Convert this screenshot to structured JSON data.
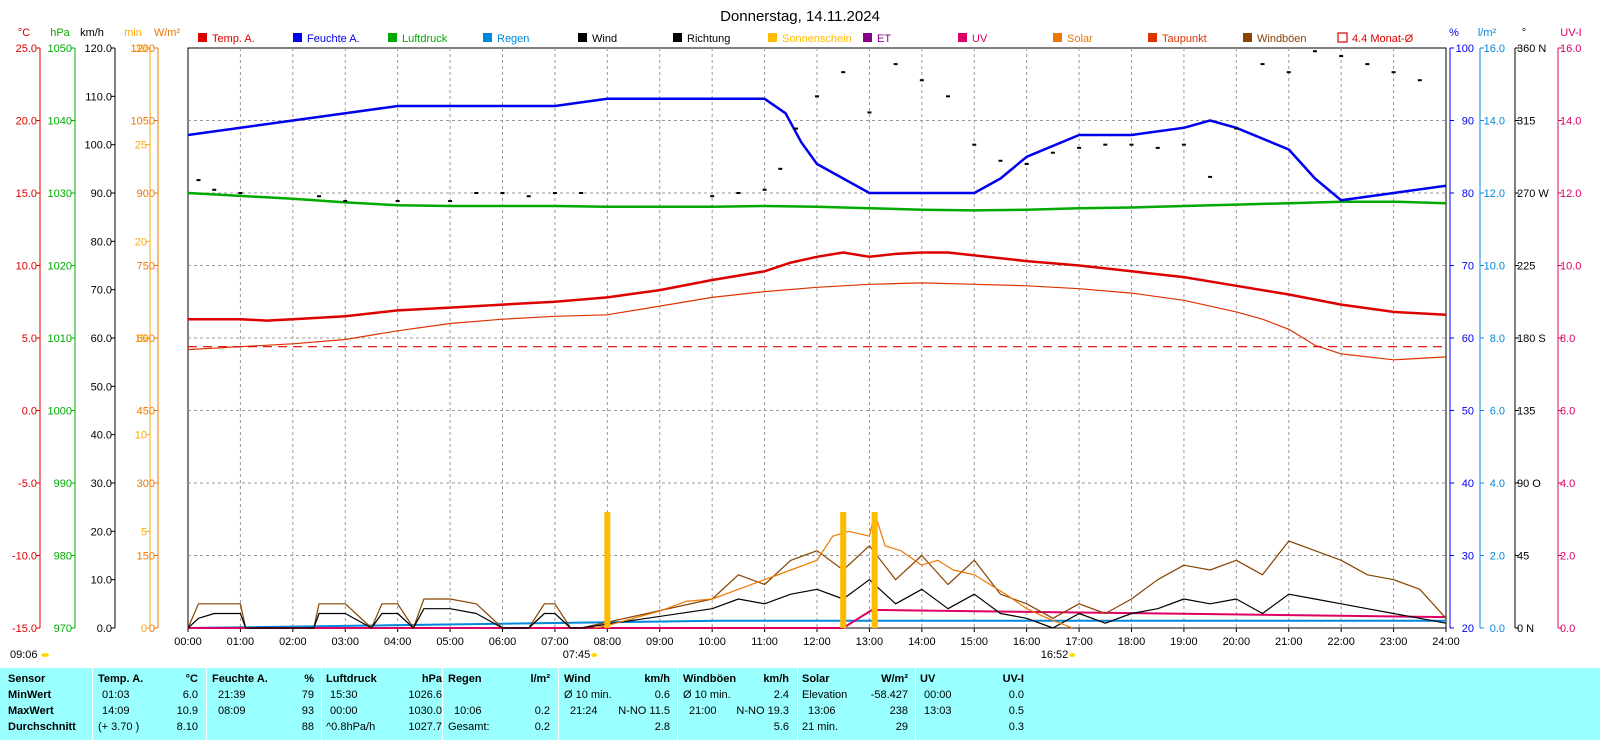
{
  "title": "Donnerstag, 14.11.2024",
  "legend": [
    {
      "label": "Temp. A.",
      "color": "#dd0000"
    },
    {
      "label": "Feuchte A.",
      "color": "#0000ee"
    },
    {
      "label": "Luftdruck",
      "color": "#00aa00"
    },
    {
      "label": "Regen",
      "color": "#0088dd"
    },
    {
      "label": "Wind",
      "color": "#000000"
    },
    {
      "label": "Richtung",
      "color": "#000000"
    },
    {
      "label": "Sonnenschein",
      "color": "#ffbb00"
    },
    {
      "label": "ET",
      "color": "#880088"
    },
    {
      "label": "UV",
      "color": "#dd0066"
    },
    {
      "label": "Solar",
      "color": "#ee7700"
    },
    {
      "label": "Taupunkt",
      "color": "#dd3300"
    },
    {
      "label": "Windböen",
      "color": "#884400"
    },
    {
      "label": "4.4 Monat-Ø",
      "color": "#dd0000"
    }
  ],
  "axes": {
    "temp": {
      "unit": "°C",
      "ticks": [
        "25.0",
        "20.0",
        "15.0",
        "10.0",
        "5.0",
        "0.0",
        "-5.0",
        "-10.0",
        "-15.0"
      ],
      "color": "#dd0000"
    },
    "pressure": {
      "unit": "hPa",
      "ticks": [
        "1050",
        "1040",
        "1030",
        "1020",
        "1010",
        "1000",
        "990",
        "980",
        "970"
      ],
      "color": "#00aa00"
    },
    "wind": {
      "unit": "km/h",
      "ticks": [
        "120.0",
        "110.0",
        "100.0",
        "90.0",
        "80.0",
        "70.0",
        "60.0",
        "50.0",
        "40.0",
        "30.0",
        "20.0",
        "10.0",
        "0.0"
      ],
      "color": "#000000"
    },
    "minutes": {
      "unit": "min",
      "ticks": [
        "30",
        "25",
        "20",
        "15",
        "10",
        "5",
        "0"
      ],
      "color": "#ffaa00"
    },
    "solar": {
      "unit": "W/m²",
      "ticks": [
        "1200",
        "1050",
        "900",
        "750",
        "600",
        "450",
        "300",
        "150",
        "0"
      ],
      "color": "#ee7700"
    },
    "humidity": {
      "unit": "%",
      "ticks": [
        "100",
        "90",
        "80",
        "70",
        "60",
        "50",
        "40",
        "30",
        "20"
      ],
      "color": "#0000ee"
    },
    "rain": {
      "unit": "l/m²",
      "ticks": [
        "16.0",
        "14.0",
        "12.0",
        "10.0",
        "8.0",
        "6.0",
        "4.0",
        "2.0",
        "0.0"
      ],
      "color": "#0088dd"
    },
    "direction": {
      "unit": "°",
      "ticks": [
        "360 N",
        "315",
        "270 W",
        "225",
        "180 S",
        "135",
        "90 O",
        "45",
        "0 N"
      ],
      "color": "#000000"
    },
    "uv": {
      "unit": "UV-I",
      "ticks": [
        "16.0",
        "14.0",
        "12.0",
        "10.0",
        "8.0",
        "6.0",
        "4.0",
        "2.0",
        "0.0"
      ],
      "color": "#dd0066"
    }
  },
  "x_ticks": [
    "00:00",
    "01:00",
    "02:00",
    "03:00",
    "04:00",
    "05:00",
    "06:00",
    "07:00",
    "08:00",
    "09:00",
    "10:00",
    "11:00",
    "12:00",
    "13:00",
    "14:00",
    "15:00",
    "16:00",
    "17:00",
    "18:00",
    "19:00",
    "20:00",
    "21:00",
    "22:00",
    "23:00",
    "24:00"
  ],
  "sun_markers": {
    "daylength": "09:06",
    "sunrise": "07:45",
    "sunset": "16:52"
  },
  "chart_data": {
    "type": "line",
    "x_unit": "hour",
    "xlim": [
      0,
      24
    ],
    "series": [
      {
        "name": "Temp. A.",
        "axis": "temp",
        "color": "#dd0000",
        "x": [
          0,
          1.0,
          1.5,
          2,
          3,
          4,
          5,
          6,
          7,
          8,
          9,
          10,
          11,
          11.5,
          12,
          12.5,
          13,
          13.5,
          14,
          14.5,
          15,
          16,
          17,
          18,
          19,
          20,
          21,
          22,
          23,
          24
        ],
        "y": [
          6.3,
          6.3,
          6.2,
          6.3,
          6.5,
          6.9,
          7.1,
          7.3,
          7.5,
          7.8,
          8.3,
          9.0,
          9.6,
          10.2,
          10.6,
          10.9,
          10.6,
          10.8,
          10.9,
          10.9,
          10.7,
          10.3,
          10.0,
          9.6,
          9.2,
          8.6,
          8.0,
          7.3,
          6.8,
          6.6
        ]
      },
      {
        "name": "Feuchte A.",
        "axis": "humidity",
        "color": "#0000ee",
        "x": [
          0,
          1,
          2,
          3,
          4,
          5,
          6,
          7,
          8,
          9,
          10,
          11,
          11.4,
          11.7,
          12,
          12.5,
          13,
          14,
          15,
          15.5,
          16,
          17,
          18,
          19,
          19.5,
          20,
          21,
          21.5,
          22,
          23,
          24
        ],
        "y": [
          88,
          89,
          90,
          91,
          92,
          92,
          92,
          92,
          93,
          93,
          93,
          93,
          91,
          87,
          84,
          82,
          80,
          80,
          80,
          82,
          85,
          88,
          88,
          89,
          90,
          89,
          86,
          82,
          79,
          80,
          81
        ]
      },
      {
        "name": "Luftdruck",
        "axis": "pressure",
        "color": "#00aa00",
        "x": [
          0,
          1,
          2,
          3,
          4,
          5,
          6,
          7,
          8,
          9,
          10,
          11,
          12,
          13,
          14,
          15,
          16,
          17,
          18,
          19,
          20,
          21,
          22,
          23,
          24
        ],
        "y": [
          1030.0,
          1029.6,
          1029.2,
          1028.7,
          1028.3,
          1028.2,
          1028.2,
          1028.2,
          1028.1,
          1028.1,
          1028.1,
          1028.2,
          1028.1,
          1027.9,
          1027.7,
          1027.6,
          1027.7,
          1027.9,
          1028.0,
          1028.2,
          1028.4,
          1028.6,
          1028.8,
          1028.8,
          1028.6
        ]
      },
      {
        "name": "Taupunkt",
        "axis": "temp",
        "color": "#dd3300",
        "x": [
          0,
          1,
          2,
          3,
          4,
          5,
          6,
          7,
          8,
          9,
          10,
          11,
          12,
          13,
          14,
          15,
          16,
          17,
          18,
          19,
          20,
          20.5,
          21,
          21.5,
          22,
          23,
          24
        ],
        "y": [
          4.2,
          4.4,
          4.6,
          4.9,
          5.5,
          6.0,
          6.3,
          6.5,
          6.6,
          7.2,
          7.8,
          8.2,
          8.5,
          8.7,
          8.8,
          8.7,
          8.6,
          8.4,
          8.1,
          7.6,
          6.8,
          6.3,
          5.6,
          4.5,
          3.9,
          3.5,
          3.7
        ]
      },
      {
        "name": "4.4 Monat-Ø",
        "axis": "temp",
        "color": "#dd0000",
        "x": [
          0,
          24
        ],
        "y": [
          4.4,
          4.4
        ]
      },
      {
        "name": "Wind",
        "axis": "wind",
        "color": "#000000",
        "x": [
          0,
          0.2,
          0.5,
          1,
          1.1,
          2.4,
          2.5,
          3,
          3.5,
          3.7,
          4,
          4.3,
          4.5,
          5,
          5.5,
          6,
          6.5,
          6.8,
          7,
          7.3,
          7.5,
          10,
          10.5,
          11,
          11.5,
          12,
          12.5,
          13,
          13.5,
          14,
          14.5,
          15,
          15.5,
          16,
          16.5,
          17,
          17.5,
          18,
          18.5,
          19,
          19.5,
          20,
          20.5,
          21,
          21.5,
          22,
          22.5,
          23,
          23.5,
          24
        ],
        "y": [
          0,
          2,
          3,
          3,
          0,
          0,
          3,
          3,
          0,
          3,
          3,
          0,
          4,
          4,
          3,
          0,
          0,
          3,
          3,
          0,
          0,
          4,
          6,
          5,
          7,
          8,
          6,
          10,
          5,
          8,
          4,
          7,
          3,
          2,
          0,
          3,
          1,
          3,
          4,
          6,
          5,
          6,
          3,
          7,
          6,
          5,
          4,
          3,
          2,
          1
        ]
      },
      {
        "name": "Windböen",
        "axis": "wind",
        "color": "#884400",
        "x": [
          0,
          0.2,
          0.5,
          1,
          1.1,
          2.4,
          2.5,
          3,
          3.5,
          3.7,
          4,
          4.3,
          4.5,
          5,
          5.5,
          6,
          6.5,
          6.8,
          7,
          7.3,
          7.5,
          10,
          10.5,
          11,
          11.5,
          12,
          12.5,
          13,
          13.5,
          14,
          14.5,
          15,
          15.5,
          16,
          16.5,
          17,
          17.5,
          18,
          18.5,
          19,
          19.5,
          20,
          20.5,
          21,
          21.5,
          22,
          22.5,
          23,
          23.5,
          24
        ],
        "y": [
          0,
          5,
          5,
          5,
          0,
          0,
          5,
          5,
          0,
          5,
          5,
          0,
          6,
          6,
          5,
          0,
          0,
          5,
          5,
          0,
          0,
          6,
          11,
          9,
          14,
          16,
          12,
          17,
          10,
          15,
          9,
          14,
          7,
          5,
          2,
          5,
          3,
          6,
          10,
          13,
          12,
          14,
          11,
          18,
          16,
          14,
          11,
          10,
          8,
          2
        ]
      },
      {
        "name": "Solar",
        "axis": "solar",
        "color": "#ee7700",
        "x": [
          7.75,
          8,
          8.5,
          9,
          9.5,
          10,
          10.5,
          11,
          11.5,
          12,
          12.3,
          12.6,
          13,
          13.1,
          13.3,
          13.6,
          14,
          14.3,
          14.6,
          15,
          15.3,
          15.6,
          16,
          16.4,
          16.87
        ],
        "y": [
          0,
          5,
          20,
          35,
          55,
          60,
          80,
          100,
          120,
          140,
          190,
          200,
          190,
          238,
          170,
          160,
          130,
          140,
          120,
          110,
          90,
          70,
          40,
          20,
          0
        ]
      },
      {
        "name": "Richtung",
        "axis": "direction",
        "color": "#000000",
        "x": [
          0.2,
          0.5,
          1,
          2.5,
          3,
          4,
          5,
          5.5,
          6,
          6.5,
          7,
          7.5,
          10,
          10.5,
          11,
          11.3,
          11.6,
          12,
          12.5,
          13,
          13.5,
          14,
          14.5,
          15,
          15.5,
          16,
          16.5,
          17,
          17.5,
          18,
          18.5,
          19,
          19.5,
          20,
          20.5,
          21,
          21.5,
          22,
          22.5,
          23,
          23.5
        ],
        "y": [
          278,
          272,
          270,
          268,
          265,
          265,
          265,
          270,
          270,
          268,
          270,
          270,
          268,
          270,
          272,
          285,
          310,
          330,
          345,
          320,
          350,
          340,
          330,
          300,
          290,
          288,
          295,
          298,
          300,
          300,
          298,
          300,
          280,
          310,
          350,
          345,
          358,
          355,
          350,
          345,
          340
        ]
      },
      {
        "name": "Sonnenschein",
        "axis": "minutes",
        "color": "#ffbb00",
        "x": [
          8.0,
          12.5,
          13.1
        ],
        "y": [
          6,
          6,
          6
        ]
      },
      {
        "name": "UV",
        "axis": "uv",
        "color": "#dd0066",
        "x": [
          0,
          12.5,
          13.05,
          24
        ],
        "y": [
          0,
          0,
          0.5,
          0.3
        ]
      },
      {
        "name": "Regen",
        "axis": "rain",
        "color": "#0088dd",
        "x": [
          0,
          10.1,
          24
        ],
        "y": [
          0,
          0.2,
          0.2
        ]
      }
    ]
  },
  "stats": {
    "labels": {
      "sensor": "Sensor",
      "min": "MinWert",
      "max": "MaxWert",
      "avg": "Durchschnitt"
    },
    "temp": {
      "head": "Temp. A.",
      "unit": "°C",
      "min_time": "01:03",
      "min_val": "6.0",
      "max_time": "14:09",
      "max_val": "10.9",
      "avg_note": "(+ 3.70 )",
      "avg_val": "8.10"
    },
    "hum": {
      "head": "Feuchte A.",
      "unit": "%",
      "min_time": "21:39",
      "min_val": "79",
      "max_time": "08:09",
      "max_val": "93",
      "avg_val": "88"
    },
    "press": {
      "head": "Luftdruck",
      "unit": "hPa",
      "min_time": "15:30",
      "min_val": "1026.6",
      "max_time": "00:00",
      "max_val": "1030.0",
      "avg_note": "^0.8hPa/h",
      "avg_val": "1027.7"
    },
    "rain": {
      "head": "Regen",
      "unit": "l/m²",
      "max_time": "10:06",
      "max_val": "0.2",
      "avg_note": "Gesamt:",
      "avg_val": "0.2"
    },
    "wind": {
      "head": "Wind",
      "unit": "km/h",
      "min_note": "Ø 10 min.",
      "min_val": "0.6",
      "max_time": "21:24",
      "max_dir": "N-NO 11.5",
      "avg_val": "2.8"
    },
    "gust": {
      "head": "Windböen",
      "unit": "km/h",
      "min_note": "Ø 10 min.",
      "min_val": "2.4",
      "max_time": "21:00",
      "max_dir": "N-NO 19.3",
      "avg_val": "5.6"
    },
    "solar": {
      "head": "Solar",
      "unit": "W/m²",
      "min_note": "Elevation",
      "min_val": "-58.427",
      "max_time": "13:06",
      "max_val": "238",
      "avg_note": "21 min.",
      "avg_val": "29"
    },
    "uv": {
      "head": "UV",
      "unit": "UV-I",
      "min_time": "00:00",
      "min_val": "0.0",
      "max_time": "13:03",
      "max_val": "0.5",
      "avg_val": "0.3"
    }
  }
}
